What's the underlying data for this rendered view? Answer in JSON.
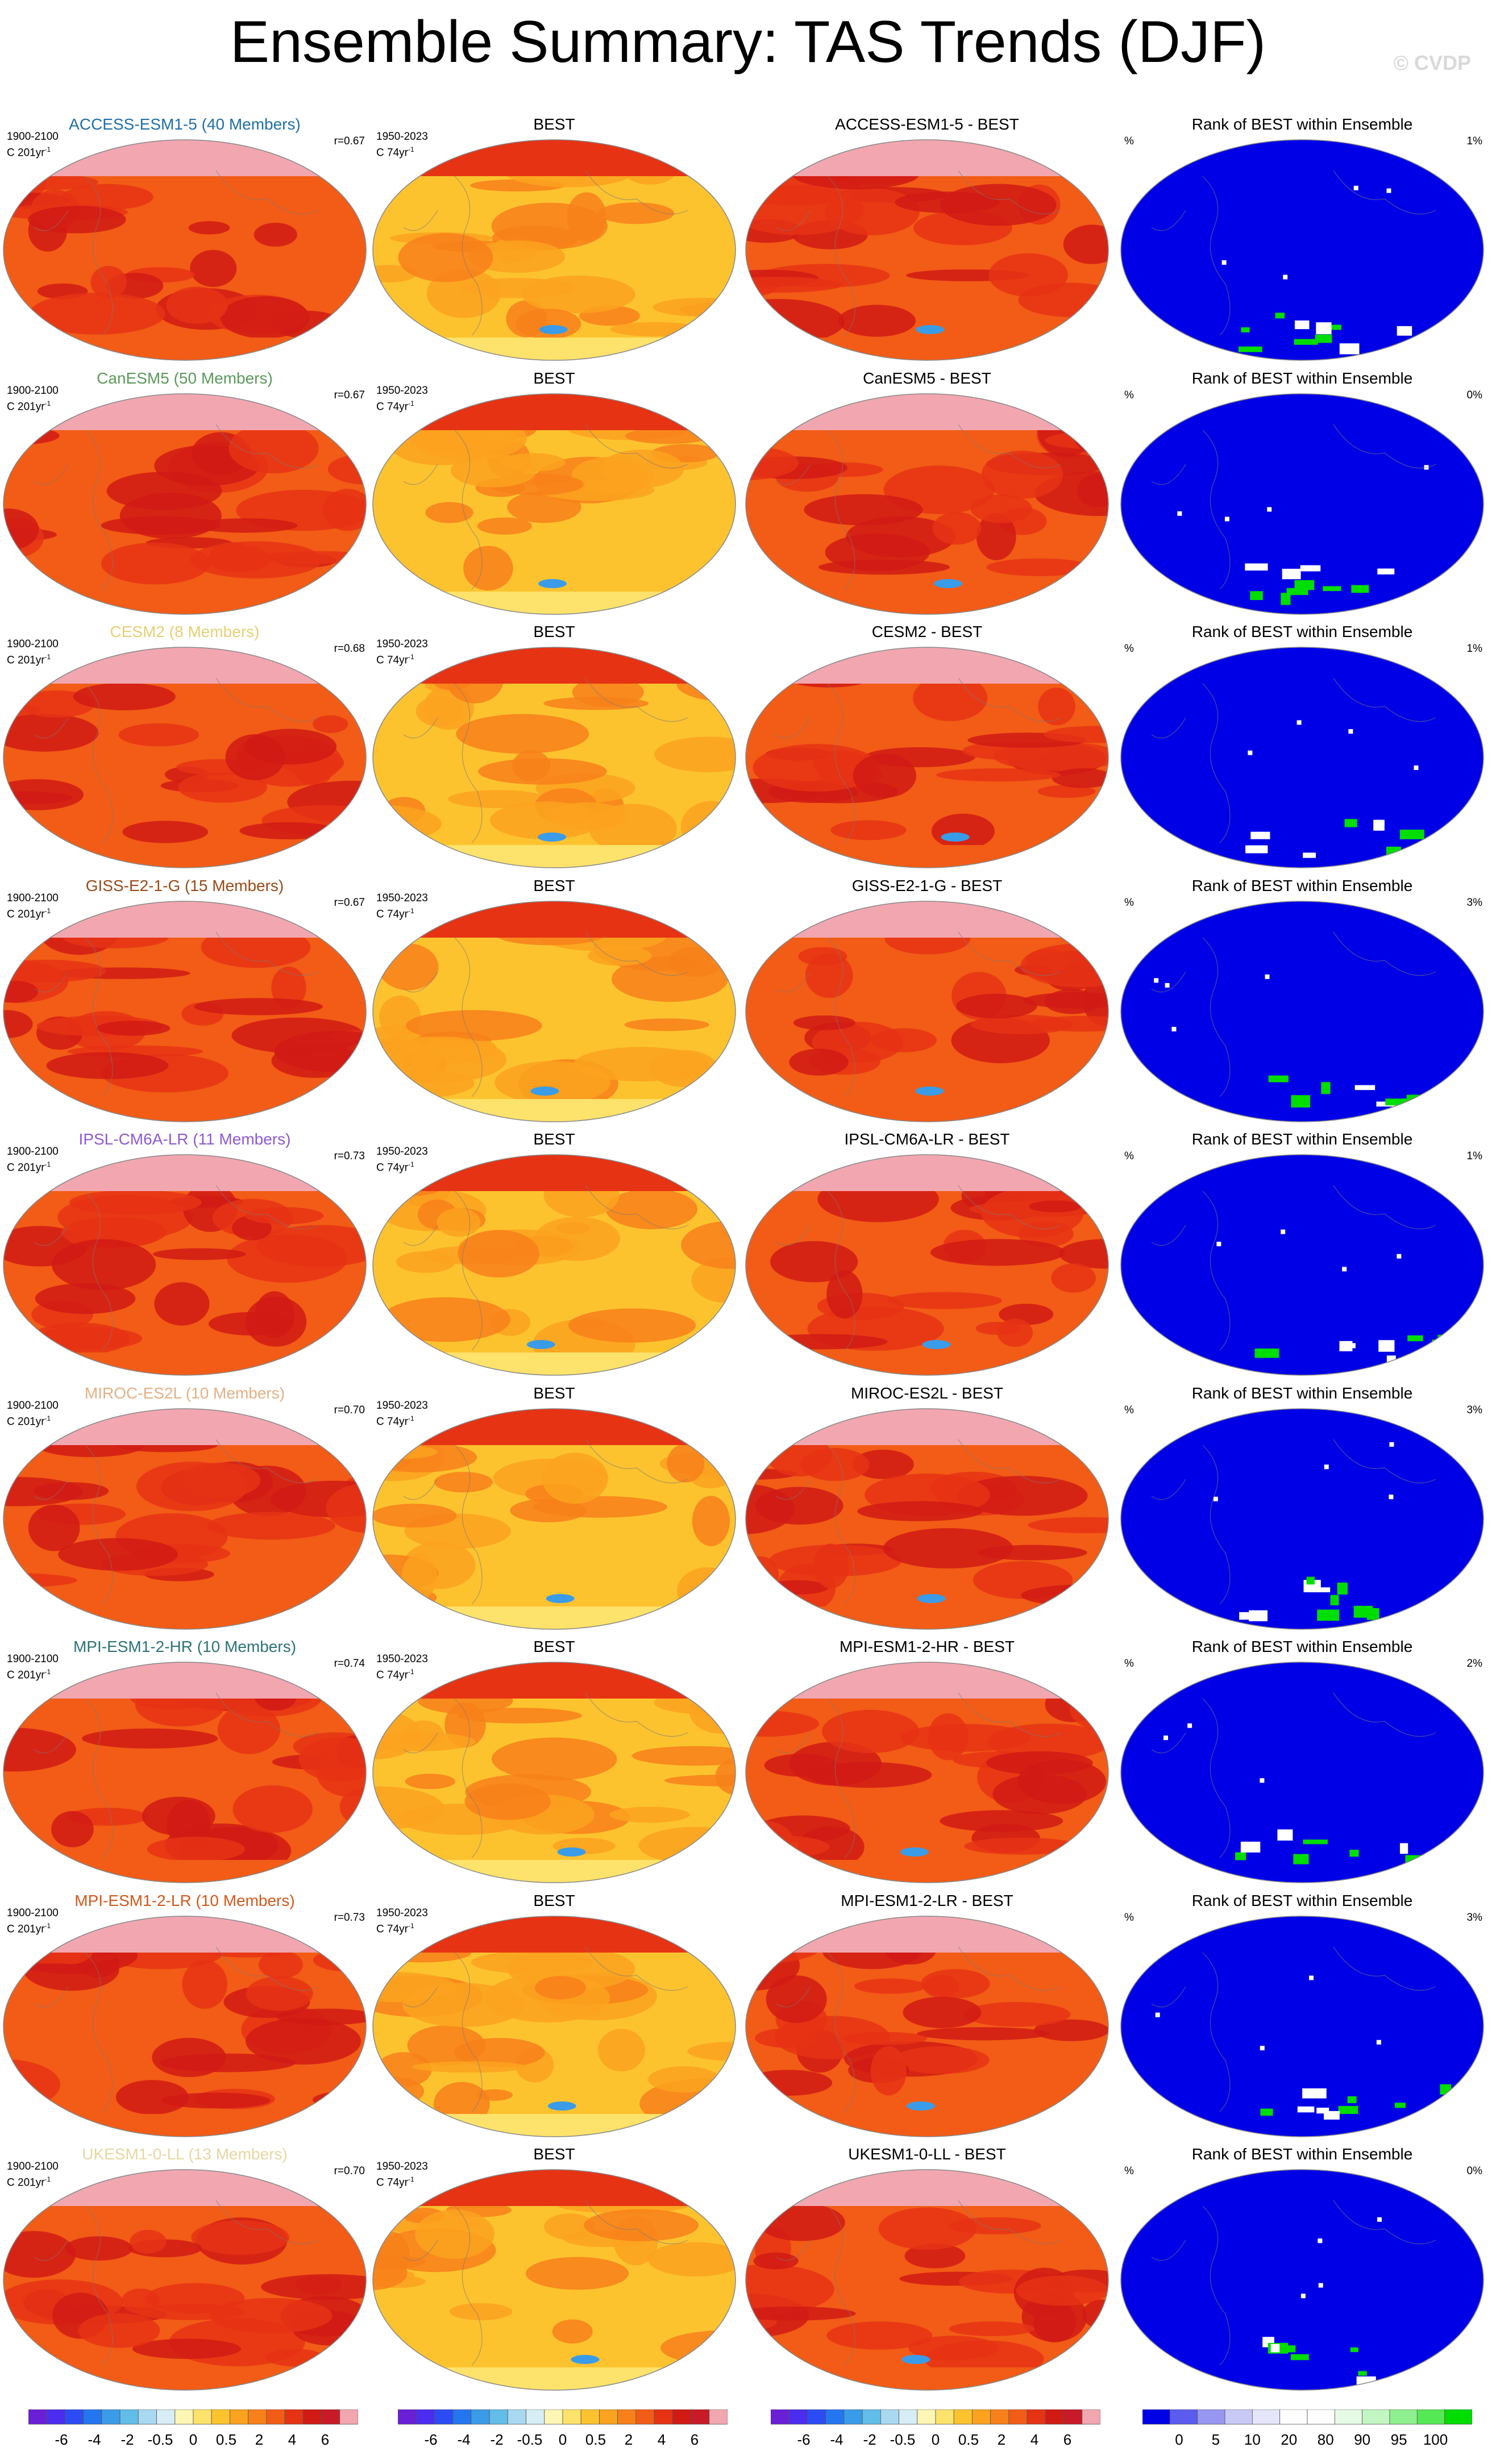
{
  "title": "Ensemble Summary: TAS Trends (DJF)",
  "watermark": "© CVDP",
  "chart_data": {
    "type": "heatmap",
    "variable": "TAS",
    "season": "DJF",
    "panel_titles": {
      "observations": "BEST",
      "rank": "Rank of BEST within Ensemble"
    },
    "diff_suffix": " - BEST",
    "model_period": "1900-2100",
    "model_units_prefix": "C 201yr",
    "obs_period": "1950-2023",
    "obs_units_prefix": "C 74yr",
    "units_exponent": "-1",
    "rank_units": "%",
    "rows": [
      {
        "model": "ACCESS-ESM1-5",
        "members": "ACCESS-ESM1-5 (40 Members)",
        "color": "#1f6fa8",
        "r": "r=0.67",
        "rank_pct": "1%"
      },
      {
        "model": "CanESM5",
        "members": "CanESM5 (50 Members)",
        "color": "#5a9a5a",
        "r": "r=0.67",
        "rank_pct": "0%"
      },
      {
        "model": "CESM2",
        "members": "CESM2 (8 Members)",
        "color": "#e7cf74",
        "r": "r=0.68",
        "rank_pct": "1%"
      },
      {
        "model": "GISS-E2-1-G",
        "members": "GISS-E2-1-G (15 Members)",
        "color": "#9b4a18",
        "r": "r=0.67",
        "rank_pct": "3%"
      },
      {
        "model": "IPSL-CM6A-LR",
        "members": "IPSL-CM6A-LR (11 Members)",
        "color": "#8e59d6",
        "r": "r=0.73",
        "rank_pct": "1%"
      },
      {
        "model": "MIROC-ES2L",
        "members": "MIROC-ES2L (10 Members)",
        "color": "#e3b085",
        "r": "r=0.70",
        "rank_pct": "3%"
      },
      {
        "model": "MPI-ESM1-2-HR",
        "members": "MPI-ESM1-2-HR (10 Members)",
        "color": "#2d7277",
        "r": "r=0.74",
        "rank_pct": "2%"
      },
      {
        "model": "MPI-ESM1-2-LR",
        "members": "MPI-ESM1-2-LR (10 Members)",
        "color": "#d2581c",
        "r": "r=0.73",
        "rank_pct": "3%"
      },
      {
        "model": "UKESM1-0-LL",
        "members": "UKESM1-0-LL (13 Members)",
        "color": "#e6d7a0",
        "r": "r=0.70",
        "rank_pct": "0%"
      }
    ],
    "trend_colorbar": {
      "labels": [
        "-6",
        "-4",
        "-2",
        "-0.5",
        "0",
        "0.5",
        "2",
        "4",
        "6"
      ],
      "colors": [
        "#6a1fd6",
        "#4b2cf0",
        "#2b4cf5",
        "#2475f0",
        "#3a9ce8",
        "#62bde8",
        "#a9d9f0",
        "#d8eef6",
        "#fdf6b5",
        "#fde26b",
        "#fcc32f",
        "#fba21f",
        "#f8801a",
        "#f25c16",
        "#e63314",
        "#d11a14",
        "#c81a28",
        "#f2a7b0"
      ]
    },
    "rank_colorbar": {
      "labels": [
        "0",
        "5",
        "10",
        "20",
        "80",
        "90",
        "95",
        "100"
      ],
      "colors": [
        "#0000e6",
        "#5b5bef",
        "#9797f2",
        "#c9c9f6",
        "#e6e6fa",
        "#ffffff",
        "#ffffff",
        "#e6fbe6",
        "#c2f6c2",
        "#8ef08e",
        "#55e955",
        "#00dd00"
      ]
    }
  }
}
